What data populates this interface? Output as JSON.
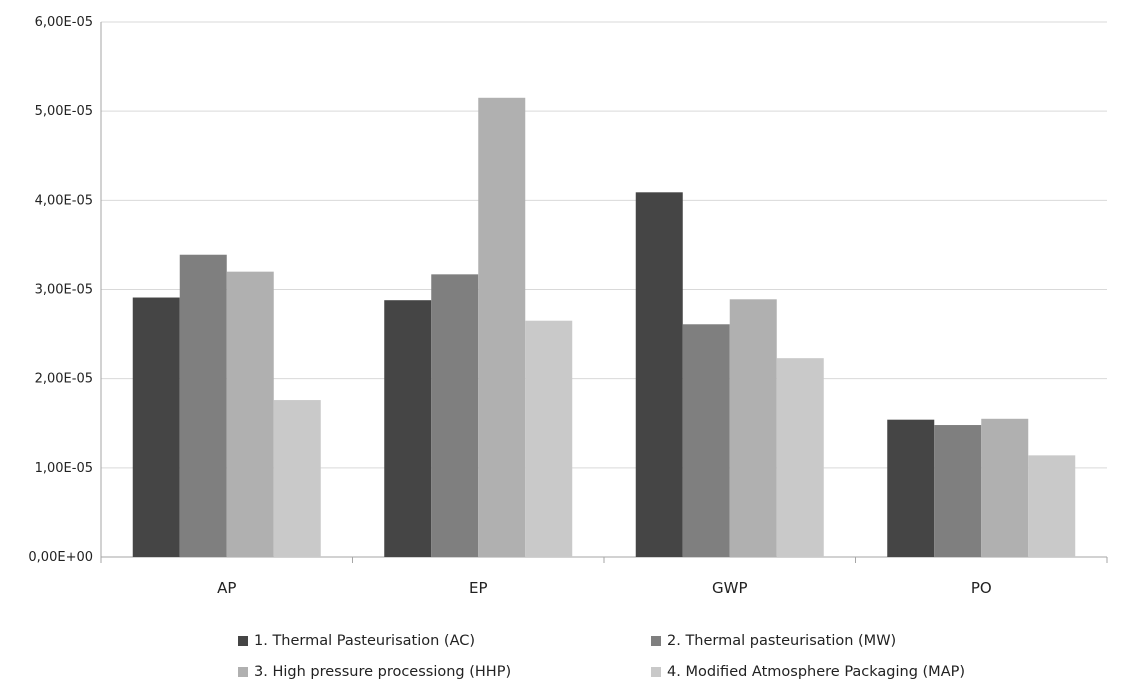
{
  "chart_data": {
    "type": "bar",
    "title": "",
    "xlabel": "",
    "ylabel": "",
    "categories": [
      "AP",
      "EP",
      "GWP",
      "PO"
    ],
    "ylim": [
      0,
      6e-05
    ],
    "yticks": [
      0,
      1e-05,
      2e-05,
      3e-05,
      4e-05,
      5e-05,
      6e-05
    ],
    "ytick_labels": [
      "0,00E+00",
      "1,00E-05",
      "2,00E-05",
      "3,00E-05",
      "4,00E-05",
      "5,00E-05",
      "6,00E-05"
    ],
    "grid": true,
    "legend_position": "bottom",
    "series": [
      {
        "name": "1. Thermal Pasteurisation (AC)",
        "color": "#454545",
        "values": [
          2.91e-05,
          2.88e-05,
          4.09e-05,
          1.54e-05
        ]
      },
      {
        "name": "2. Thermal pasteurisation (MW)",
        "color": "#7f7f7f",
        "values": [
          3.39e-05,
          3.17e-05,
          2.61e-05,
          1.48e-05
        ]
      },
      {
        "name": "3. High pressure processiong (HHP)",
        "color": "#b0b0b0",
        "values": [
          3.2e-05,
          5.15e-05,
          2.89e-05,
          1.55e-05
        ]
      },
      {
        "name": "4. Modified Atmosphere Packaging (MAP)",
        "color": "#c9c9c9",
        "values": [
          1.76e-05,
          2.65e-05,
          2.23e-05,
          1.14e-05
        ]
      }
    ]
  }
}
